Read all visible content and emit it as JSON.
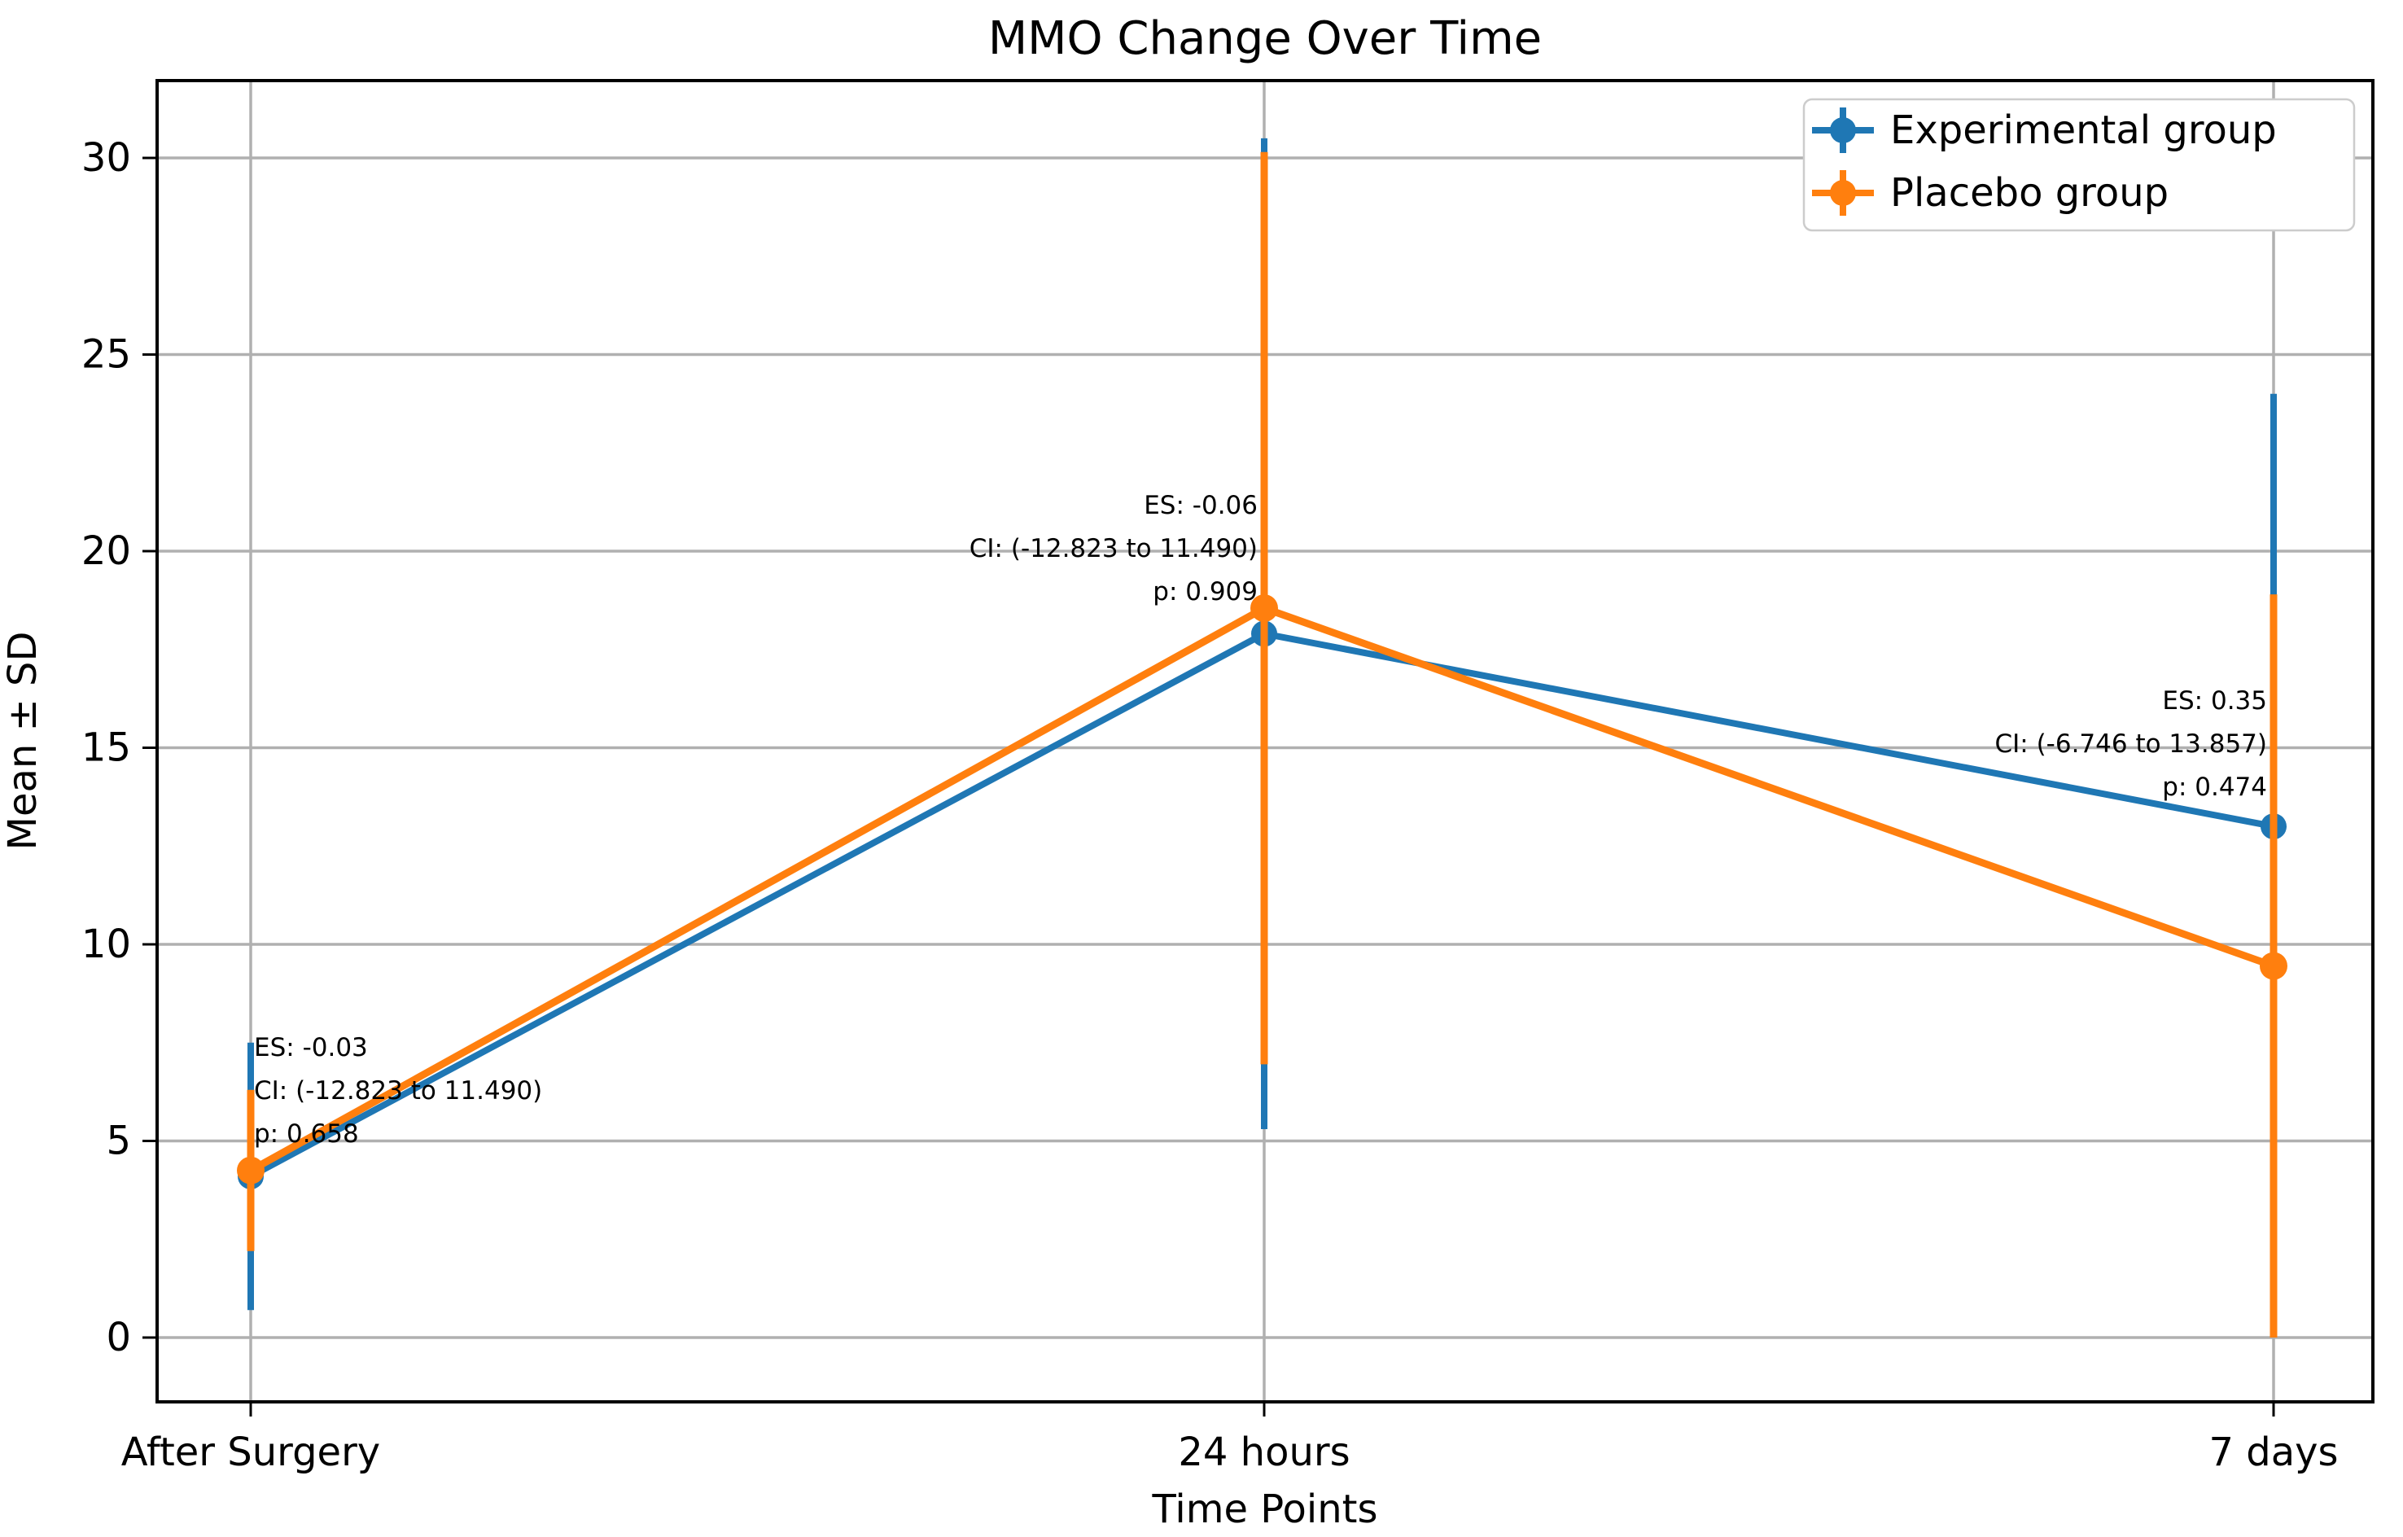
{
  "figure": {
    "background": "#ffffff",
    "text_color": "#000000"
  },
  "chart_data": {
    "type": "line",
    "title": "MMO Change Over Time",
    "xlabel": "Time Points",
    "ylabel": "Mean ± SD",
    "categories": [
      "After Surgery",
      "24 hours",
      "7 days"
    ],
    "yticks": [
      0,
      5,
      10,
      15,
      20,
      25,
      30
    ],
    "ylim": [
      -1.6,
      32
    ],
    "grid": true,
    "grid_color": "#b0b0b0",
    "legend_position": "upper right",
    "series": [
      {
        "name": "Experimental group",
        "color": "#1f77b4",
        "values": [
          4.1,
          17.9,
          13.0
        ],
        "sd": [
          3.4,
          12.6,
          11.0
        ]
      },
      {
        "name": "Placebo group",
        "color": "#ff7f0e",
        "values": [
          4.25,
          18.55,
          9.45
        ],
        "sd": [
          2.05,
          11.6,
          9.45
        ]
      }
    ],
    "annotations": [
      {
        "x_index": 0,
        "align": "left",
        "y": 7.37,
        "lines": [
          "ES: -0.03",
          "CI: (-12.823 to 11.490)",
          "p: 0.658"
        ]
      },
      {
        "x_index": 1,
        "align": "right",
        "y": 21.16,
        "lines": [
          "ES: -0.06",
          "CI: (-12.823 to 11.490)",
          "p: 0.909"
        ]
      },
      {
        "x_index": 2,
        "align": "right",
        "y": 16.19,
        "lines": [
          "ES: 0.35",
          "CI: (-6.746 to 13.857)",
          "p: 0.474"
        ]
      }
    ]
  }
}
